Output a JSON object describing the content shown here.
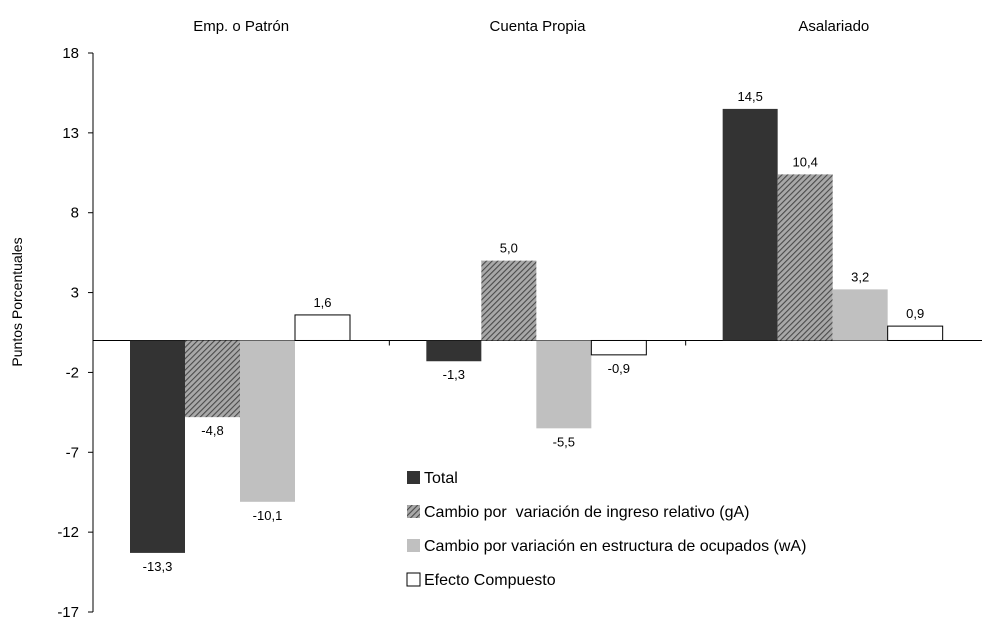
{
  "chart_data": {
    "type": "bar",
    "categories": [
      "Emp. o Patrón",
      "Cuenta Propia",
      "Asalariado"
    ],
    "ylabel": "Puntos Porcentuales",
    "ylim": [
      -17,
      18
    ],
    "yticks": [
      "18",
      "13",
      "8",
      "3",
      "-2",
      "-7",
      "-12",
      "-17"
    ],
    "grid": false,
    "legend_position": "bottom-center",
    "series": [
      {
        "name": "Total",
        "values": [
          -13.3,
          -1.3,
          14.5
        ],
        "labels": [
          "-13,3",
          "-1,3",
          "14,5"
        ],
        "pattern": "solid-dark",
        "color": "#333333"
      },
      {
        "name": "Cambio por  variación de ingreso relativo (gA)",
        "values": [
          -4.8,
          5.0,
          10.4
        ],
        "labels": [
          "-4,8",
          "5,0",
          "10,4"
        ],
        "pattern": "hatched",
        "color": "#7a7a7a"
      },
      {
        "name": "Cambio por variación en estructura de ocupados (wA)",
        "values": [
          -10.1,
          -5.5,
          3.2
        ],
        "labels": [
          "-10,1",
          "-5,5",
          "3,2"
        ],
        "pattern": "solid-light",
        "color": "#c0c0c0"
      },
      {
        "name": "Efecto Compuesto",
        "values": [
          1.6,
          -0.9,
          0.9
        ],
        "labels": [
          "1,6",
          "-0,9",
          "0,9"
        ],
        "pattern": "white",
        "color": "#ffffff"
      }
    ]
  }
}
